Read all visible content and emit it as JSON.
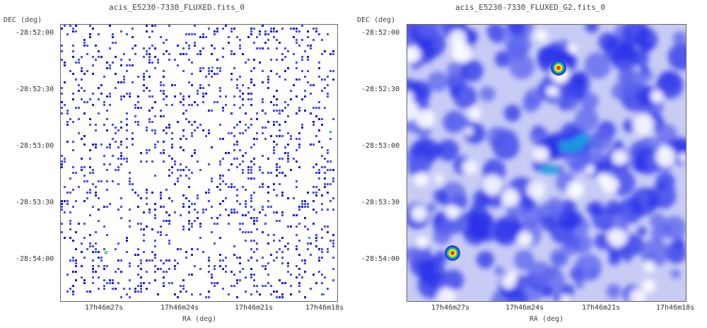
{
  "panels": [
    {
      "title": "acis_E5230-7330_FLUXED.fits_0",
      "ylabel": "DEC (deg)",
      "xlabel": "RA (deg)",
      "yticks": [
        "-28:52:00",
        "-28:52:30",
        "-28:53:00",
        "-28:53:30",
        "-28:54:00"
      ],
      "xticks": [
        "17h46m27s",
        "17h46m24s",
        "17h46m21s",
        "17h46m18s"
      ],
      "style": "sparse-events",
      "colors": {
        "low": "#4a4ef0",
        "mid": "#1a1ad0",
        "high": "#00cc88",
        "peak": "#ffff00"
      }
    },
    {
      "title": "acis_E5230-7330_FLUXED_G2.fits_0",
      "ylabel": "DEC (deg)",
      "xlabel": "RA (deg)",
      "yticks": [
        "-28:52:00",
        "-28:52:30",
        "-28:53:00",
        "-28:53:30",
        "-28:54:00"
      ],
      "xticks": [
        "17h46m27s",
        "17h46m24s",
        "17h46m21s",
        "17h46m18s"
      ],
      "style": "smoothed",
      "colors": {
        "low": "#aab0f0",
        "mid": "#2a32e8",
        "high": "#00ddcc",
        "peak": "#ff3000"
      }
    }
  ]
}
